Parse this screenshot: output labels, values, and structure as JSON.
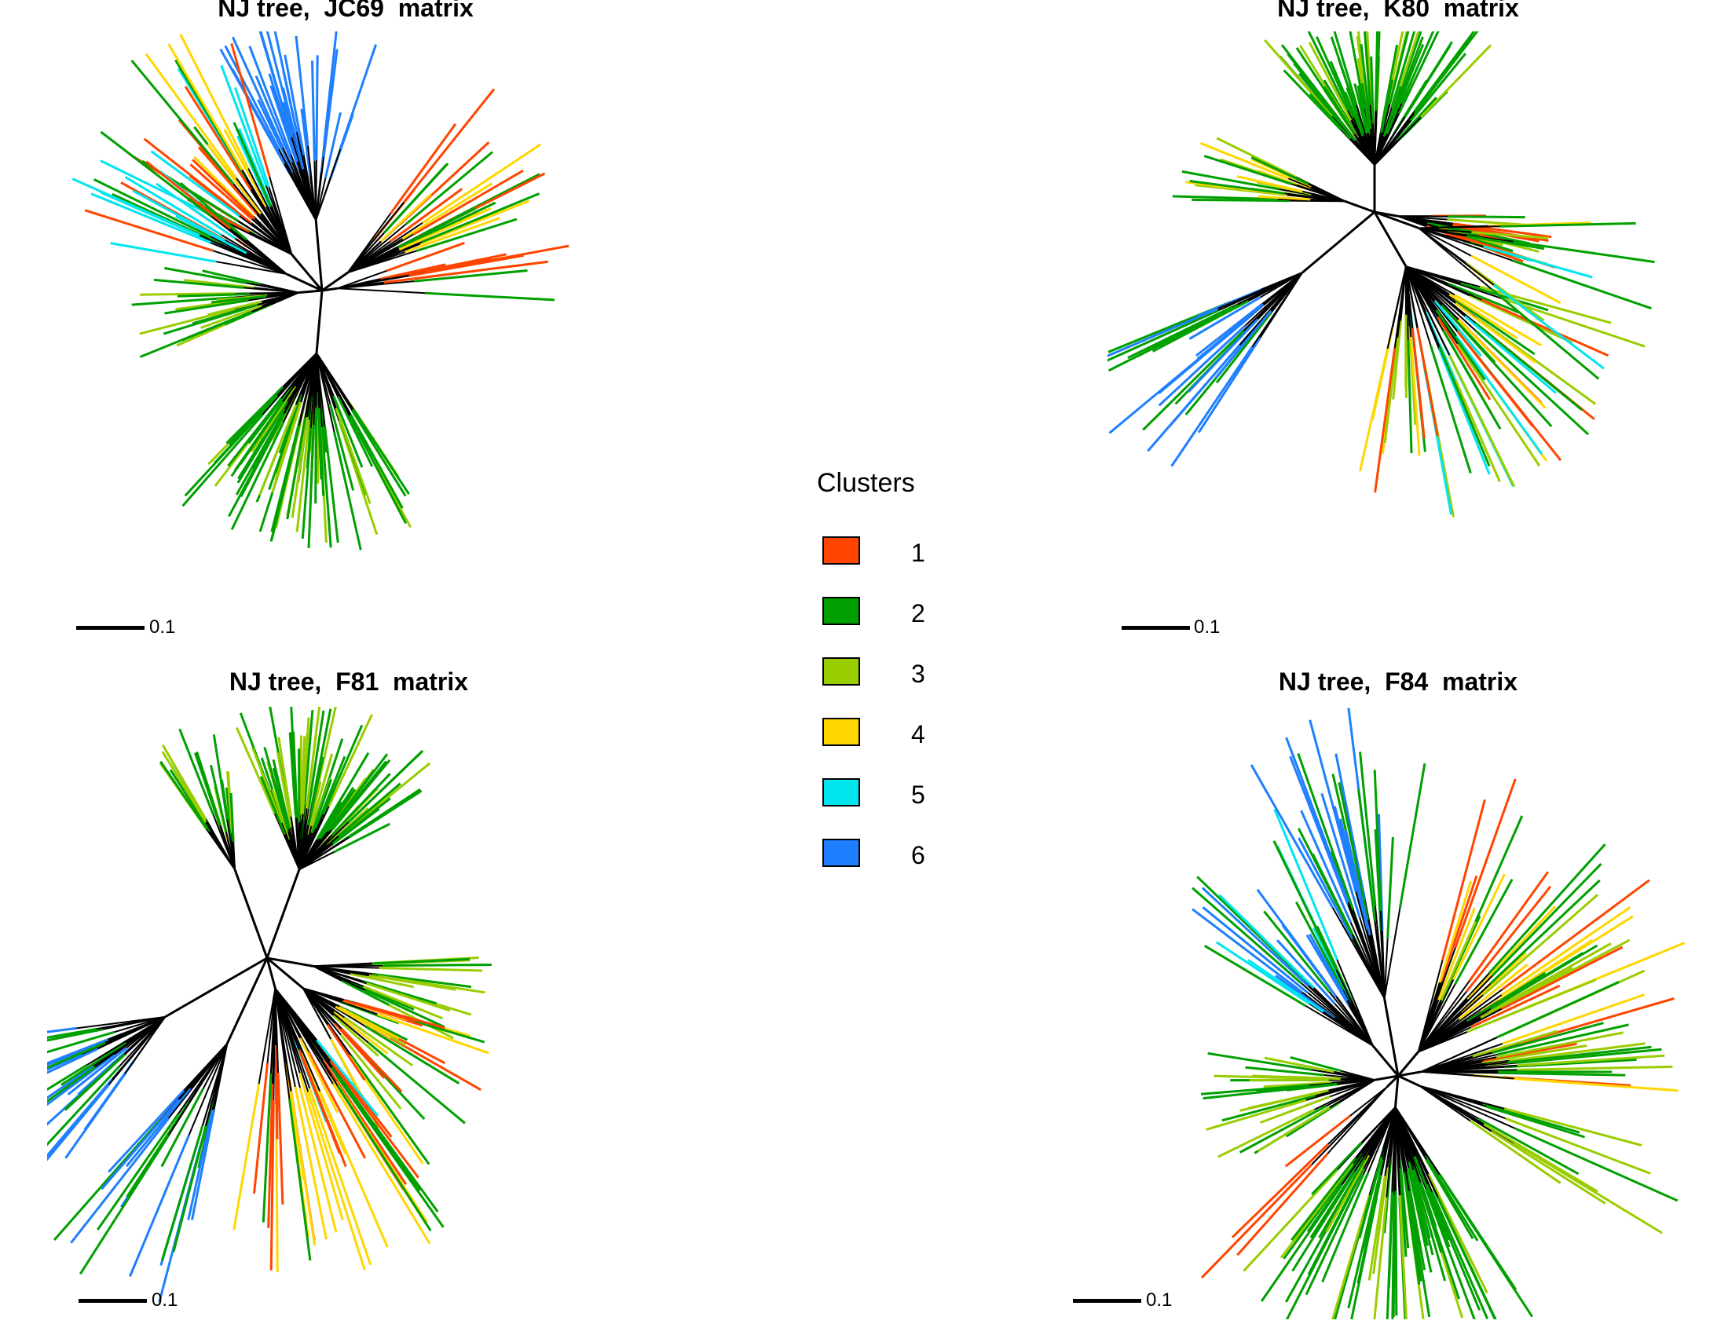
{
  "panels": [
    {
      "id": "jc69",
      "title": "NJ tree,  JC69  matrix",
      "scale_label": "0.1",
      "seed": 11,
      "layout": "A"
    },
    {
      "id": "k80",
      "title": "NJ tree,  K80  matrix",
      "scale_label": "0.1",
      "seed": 23,
      "layout": "B"
    },
    {
      "id": "f81",
      "title": "NJ tree,  F81  matrix",
      "scale_label": "0.1",
      "seed": 37,
      "layout": "C"
    },
    {
      "id": "f84",
      "title": "NJ tree,  F84  matrix",
      "scale_label": "0.1",
      "seed": 53,
      "layout": "D"
    }
  ],
  "legend": {
    "title": "Clusters",
    "items": [
      {
        "label": "1",
        "color": "#ff4500"
      },
      {
        "label": "2",
        "color": "#00a000"
      },
      {
        "label": "3",
        "color": "#9acd00"
      },
      {
        "label": "4",
        "color": "#ffd700"
      },
      {
        "label": "5",
        "color": "#00e5ee"
      },
      {
        "label": "6",
        "color": "#1e7fff"
      }
    ]
  },
  "branch_color": "#000000"
}
